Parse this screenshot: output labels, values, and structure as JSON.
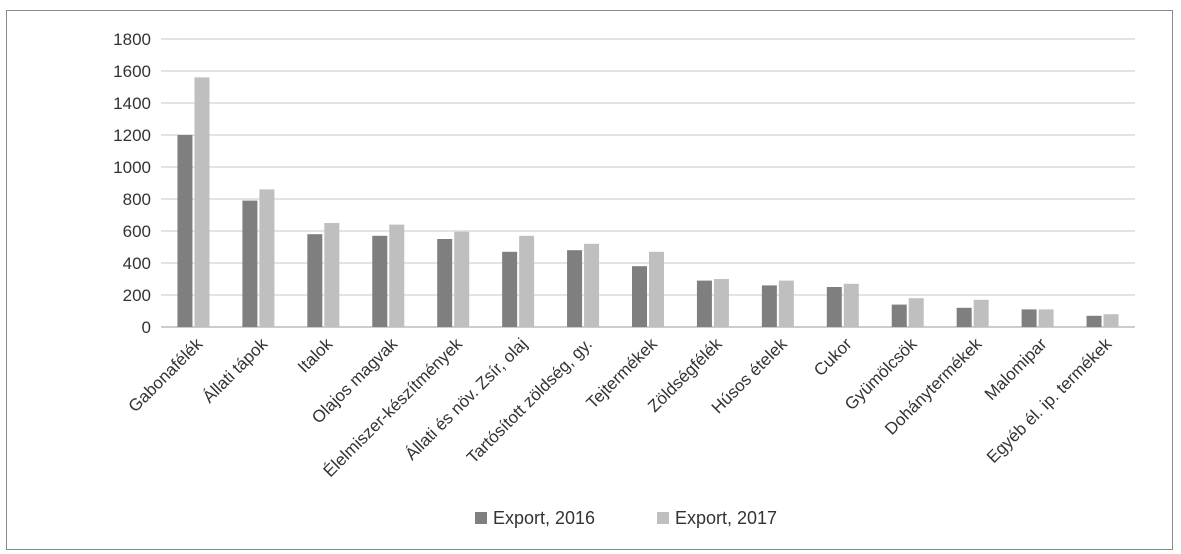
{
  "chart_data": {
    "type": "bar",
    "categories": [
      "Gabonafélék",
      "Állati tápok",
      "Italok",
      "Olajos magvak",
      "Élelmiszer-készítmények",
      "Állati és növ. Zsír, olaj",
      "Tartósított zöldség, gy.",
      "Tejtermékek",
      "Zöldségfélék",
      "Húsos ételek",
      "Cukor",
      "Gyümölcsök",
      "Dohánytermékek",
      "Malomipar",
      "Egyéb él. ip. termékek"
    ],
    "series": [
      {
        "name": "Export, 2016",
        "color": "#7f7f7f",
        "values": [
          1200,
          790,
          580,
          570,
          550,
          470,
          480,
          380,
          290,
          260,
          250,
          140,
          120,
          110,
          70
        ]
      },
      {
        "name": "Export, 2017",
        "color": "#bfbfbf",
        "values": [
          1560,
          860,
          650,
          640,
          595,
          570,
          520,
          470,
          300,
          290,
          270,
          180,
          170,
          110,
          80
        ]
      }
    ],
    "ylim": [
      0,
      1800
    ],
    "yticks": [
      0,
      200,
      400,
      600,
      800,
      1000,
      1200,
      1400,
      1600,
      1800
    ],
    "grid": true,
    "legend_position": "bottom"
  }
}
